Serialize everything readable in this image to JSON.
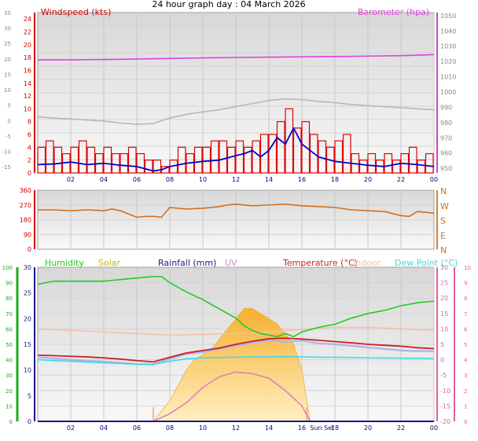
{
  "title": "24 hour graph day : 04 March 2026",
  "colors": {
    "wind": "#e00000",
    "gust_line": "#0000cc",
    "barometer": "#e040e0",
    "temp_ghost": "#b8b8b8",
    "direction": "#d07020",
    "humidity": "#22cc22",
    "solar": "#ffc040",
    "rainfall": "#1a1a80",
    "uv": "#e080c0",
    "temperature": "#cc2020",
    "indoor": "#f5c0a8",
    "dewpoint": "#40d8e8",
    "windchill": "#b0b0f0",
    "axis_left": "#cc0000",
    "axis_baro": "#cc44cc",
    "axis_hum": "#22aa22",
    "axis_temp": "#e060a0",
    "axis_gray": "#888888",
    "x_ticks": "#000080",
    "panel_bg": "#e8e8e8"
  },
  "chart_data": [
    {
      "type": "line",
      "panel": "wind",
      "labels": {
        "left": "Windspeed (kts)",
        "right": "Barometer (hpa)"
      },
      "x_ticks": [
        "02",
        "04",
        "06",
        "08",
        "10",
        "12",
        "14",
        "16",
        "18",
        "20",
        "22",
        "00"
      ],
      "x_range": [
        0,
        24
      ],
      "y_wind_ticks": [
        "0",
        "2",
        "4",
        "6",
        "8",
        "10",
        "12",
        "14",
        "16",
        "18",
        "20",
        "22",
        "24"
      ],
      "y_wind_range": [
        0,
        25
      ],
      "y_temp_ticks": [
        "-15",
        "-10",
        "-5",
        "0",
        "5",
        "10",
        "15",
        "20",
        "25",
        "30",
        "35"
      ],
      "y_temp_range": [
        -17,
        35
      ],
      "y_baro_ticks": [
        "950",
        "960",
        "970",
        "980",
        "990",
        "1000",
        "1010",
        "1020",
        "1030",
        "1040",
        "1050"
      ],
      "y_baro_range": [
        947,
        1052
      ],
      "series": [
        {
          "id": "barometer",
          "axis": "baro",
          "x": [
            0,
            2,
            4,
            6,
            8,
            10,
            12,
            14,
            16,
            18,
            20,
            22,
            24
          ],
          "y": [
            1021,
            1021,
            1021.3,
            1021.6,
            1022,
            1022.3,
            1022.6,
            1022.8,
            1023,
            1023.2,
            1023.5,
            1023.8,
            1024.5
          ]
        },
        {
          "id": "temp_ghost",
          "axis": "temp",
          "x": [
            0,
            1,
            2,
            3,
            4,
            5,
            6,
            7,
            8,
            9,
            10,
            11,
            12,
            13,
            14,
            15,
            16,
            17,
            18,
            19,
            20,
            21,
            22,
            23,
            24
          ],
          "y": [
            1.2,
            0.8,
            0.5,
            0.2,
            -0.2,
            -0.8,
            -1.2,
            -1.0,
            0.8,
            2.0,
            2.8,
            3.5,
            4.5,
            5.5,
            6.5,
            7.0,
            6.8,
            6.2,
            5.8,
            5.2,
            4.8,
            4.5,
            4.2,
            3.8,
            3.5
          ]
        },
        {
          "id": "wind_avg",
          "axis": "wind",
          "role": "average",
          "x": [
            0,
            1,
            2,
            3,
            4,
            5,
            6,
            7,
            7.5,
            8,
            9,
            10,
            11,
            12,
            12.5,
            13,
            13.5,
            14,
            14.5,
            15,
            15.5,
            16,
            16.5,
            17,
            18,
            19,
            20,
            21,
            22,
            23,
            24
          ],
          "y": [
            1.3,
            1.4,
            1.7,
            1.3,
            1.5,
            1.2,
            1.0,
            0.3,
            0.5,
            1.0,
            1.5,
            1.8,
            2.0,
            2.7,
            3.0,
            3.5,
            2.5,
            3.5,
            5.5,
            4.5,
            7.0,
            4.5,
            3.5,
            2.5,
            1.8,
            1.5,
            1.2,
            1.0,
            1.5,
            1.3,
            1.0
          ]
        },
        {
          "id": "wind_gust",
          "axis": "wind",
          "role": "gust",
          "x": [
            0,
            0.5,
            1,
            1.5,
            2,
            2.5,
            3,
            3.5,
            4,
            4.5,
            5,
            5.5,
            6,
            6.5,
            7,
            7.5,
            8,
            8.5,
            9,
            9.5,
            10,
            10.5,
            11,
            11.5,
            12,
            12.5,
            13,
            13.5,
            14,
            14.5,
            15,
            15.5,
            16,
            16.5,
            17,
            17.5,
            18,
            18.5,
            19,
            19.5,
            20,
            20.5,
            21,
            21.5,
            22,
            22.5,
            23,
            23.5,
            24
          ],
          "y": [
            4,
            5,
            4,
            3,
            4,
            5,
            4,
            3,
            4,
            3,
            3,
            4,
            3,
            2,
            2,
            1,
            2,
            4,
            3,
            4,
            4,
            5,
            5,
            4,
            5,
            4,
            5,
            6,
            6,
            8,
            10,
            7,
            8,
            6,
            5,
            4,
            5,
            6,
            3,
            2,
            3,
            2,
            3,
            2,
            3,
            4,
            2,
            3,
            2
          ]
        }
      ]
    },
    {
      "type": "line",
      "panel": "direction",
      "x_range": [
        0,
        24
      ],
      "y_ticks": [
        "0",
        "90",
        "180",
        "270",
        "360"
      ],
      "y_range": [
        0,
        360
      ],
      "compass": [
        "N",
        "W",
        "S",
        "E",
        "N"
      ],
      "series": [
        {
          "id": "direction",
          "axis": "dir",
          "x": [
            0,
            1,
            2,
            3,
            4,
            4.5,
            5,
            6,
            6.5,
            7,
            7.5,
            8,
            9,
            10,
            11,
            11.5,
            12,
            13,
            14,
            15,
            16,
            17,
            18,
            19,
            20,
            21,
            22,
            22.5,
            23,
            24
          ],
          "y": [
            240,
            240,
            235,
            240,
            235,
            245,
            235,
            195,
            200,
            200,
            195,
            255,
            245,
            250,
            260,
            270,
            275,
            265,
            270,
            275,
            265,
            260,
            255,
            240,
            235,
            230,
            205,
            200,
            230,
            220
          ]
        }
      ]
    },
    {
      "type": "line",
      "panel": "climate",
      "labels": {
        "humidity": "Humidity",
        "solar": "Solar",
        "rainfall": "Rainfall (mm)",
        "uv": "UV",
        "temperature": "Temperature (°C)",
        "indoor": "Indoor",
        "dewpoint": "Dew Point (°C)"
      },
      "x_ticks": [
        "02",
        "04",
        "06",
        "08",
        "10",
        "12",
        "14",
        "16",
        "18",
        "20",
        "22",
        "00"
      ],
      "sun_label": "Sun Set",
      "x_range": [
        0,
        24
      ],
      "y_hum_ticks": [
        "0",
        "10",
        "20",
        "30",
        "40",
        "50",
        "60",
        "70",
        "80",
        "90",
        "100"
      ],
      "y_hum_range": [
        0,
        100
      ],
      "y_rain_ticks": [
        "0",
        "5",
        "10",
        "15",
        "20",
        "25",
        "30"
      ],
      "y_rain_range": [
        0,
        30
      ],
      "y_temp_ticks": [
        "-20",
        "-15",
        "-10",
        "-5",
        "0",
        "5",
        "10",
        "15",
        "20",
        "25",
        "30"
      ],
      "y_temp_range": [
        -20,
        30
      ],
      "y_uv_ticks": [
        "0",
        "1",
        "2",
        "3",
        "4",
        "5",
        "6",
        "7",
        "8",
        "9",
        "10"
      ],
      "y_uv_range": [
        0,
        10
      ],
      "series": [
        {
          "id": "humidity",
          "axis": "hum",
          "x": [
            0,
            1,
            2,
            3,
            4,
            5,
            6,
            7,
            7.5,
            8,
            9,
            10,
            11,
            12,
            12.5,
            13,
            13.5,
            14,
            14.5,
            15,
            15.5,
            16,
            17,
            18,
            19,
            20,
            21,
            22,
            23,
            24
          ],
          "y": [
            89,
            91,
            91,
            91,
            91,
            92,
            93,
            94,
            94,
            90,
            84,
            79,
            73,
            67,
            62,
            59,
            57,
            56,
            55,
            57,
            55,
            58,
            61,
            63,
            67,
            70,
            72,
            75,
            77,
            78
          ]
        },
        {
          "id": "indoor",
          "axis": "temp",
          "x": [
            0,
            2,
            4,
            6,
            8,
            10,
            12,
            14,
            16,
            18,
            20,
            22,
            24
          ],
          "y": [
            10,
            9.5,
            9,
            8.5,
            8,
            8.2,
            8.5,
            9,
            9.8,
            10.5,
            10.5,
            10,
            9.5
          ]
        },
        {
          "id": "windchill",
          "axis": "temp",
          "x": [
            0,
            1,
            2,
            3,
            4,
            5,
            6,
            7,
            8,
            9,
            10,
            11,
            12,
            13,
            14,
            15,
            16,
            17,
            18,
            19,
            20,
            21,
            22,
            23,
            24
          ],
          "y": [
            0.8,
            0.4,
            0,
            -0.3,
            -0.6,
            -1.0,
            -1.4,
            -1.5,
            0.3,
            1.8,
            2.5,
            3.5,
            4.5,
            5.5,
            6.3,
            5.8,
            6.2,
            5.3,
            5.0,
            4.5,
            4.0,
            3.5,
            3.0,
            2.8,
            2.8
          ]
        },
        {
          "id": "temperature",
          "axis": "temp",
          "x": [
            0,
            1,
            2,
            3,
            4,
            5,
            6,
            7,
            8,
            9,
            10,
            11,
            12,
            13,
            14,
            15,
            16,
            17,
            18,
            19,
            20,
            21,
            22,
            23,
            24
          ],
          "y": [
            1.5,
            1.3,
            1.1,
            0.9,
            0.6,
            0.2,
            -0.3,
            -0.7,
            0.8,
            2.2,
            3.0,
            3.8,
            5.0,
            6.0,
            6.8,
            7.0,
            6.7,
            6.3,
            5.9,
            5.5,
            5.0,
            4.7,
            4.4,
            3.9,
            3.6
          ]
        },
        {
          "id": "dewpoint",
          "axis": "temp",
          "x": [
            0,
            1,
            2,
            3,
            4,
            5,
            6,
            7,
            8,
            9,
            10,
            11,
            12,
            13,
            14,
            15,
            16,
            17,
            18,
            19,
            20,
            21,
            22,
            23,
            24
          ],
          "y": [
            0,
            -0.3,
            -0.5,
            -0.8,
            -1.0,
            -1.2,
            -1.5,
            -1.5,
            -0.5,
            0.3,
            0.6,
            0.7,
            0.8,
            0.9,
            0.9,
            1.0,
            0.9,
            0.8,
            0.8,
            0.7,
            0.6,
            0.6,
            0.5,
            0.5,
            0.4
          ]
        },
        {
          "id": "solar",
          "axis": "rain",
          "role": "area",
          "x": [
            7,
            7.5,
            8,
            8.5,
            9,
            9.5,
            10,
            10.5,
            11,
            11.5,
            12,
            12.5,
            13,
            13.5,
            14,
            14.5,
            15,
            15.5,
            16,
            16.5
          ],
          "y": [
            0,
            2,
            4,
            7,
            10,
            12,
            13,
            14,
            16,
            18,
            20,
            22,
            22,
            21,
            20,
            19,
            17,
            15,
            10,
            0
          ]
        },
        {
          "id": "uv",
          "axis": "uv",
          "x": [
            7,
            8,
            9,
            10,
            11,
            12,
            13,
            14,
            15,
            16,
            16.5
          ],
          "y": [
            0,
            0.5,
            1.2,
            2.2,
            2.9,
            3.2,
            3.1,
            2.8,
            2.0,
            1.0,
            0
          ]
        },
        {
          "id": "rainfall",
          "axis": "rain",
          "x": [
            0,
            24
          ],
          "y": [
            0,
            0
          ]
        }
      ]
    }
  ]
}
